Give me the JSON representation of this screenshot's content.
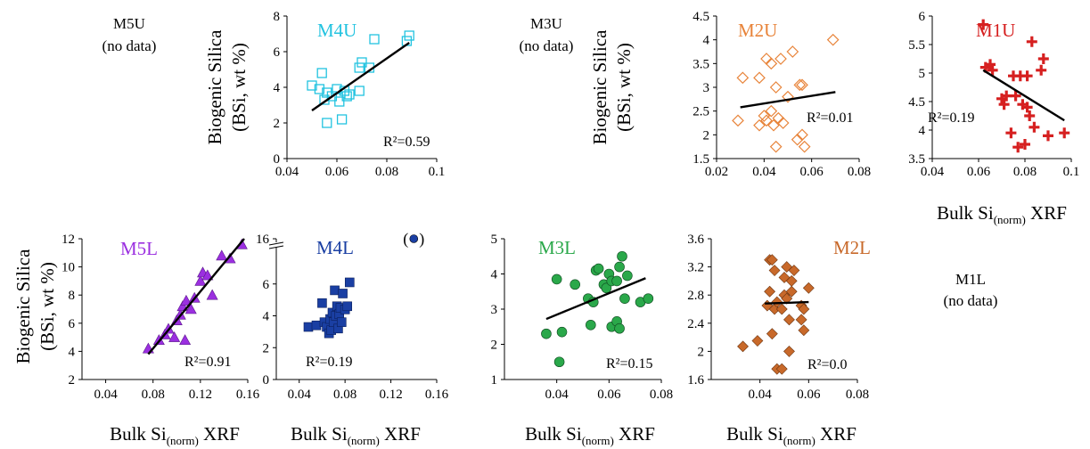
{
  "figure": {
    "panels_top": [
      "M5U",
      "M4U",
      "M3U",
      "M2U",
      "M1U"
    ],
    "panels_bottom": [
      "M5L",
      "M4L",
      "M3L",
      "M2L",
      "M1L"
    ]
  },
  "labels": {
    "ylabel_line1": "Biogenic Silica",
    "ylabel_line2": "(BSi, wt %)",
    "xlabel_main": "Bulk Si",
    "xlabel_sub": "(norm)",
    "xlabel_end": " XRF",
    "no_data": "(no data)"
  },
  "nodata_panels": [
    {
      "title": "M5U",
      "note": "(no data)"
    },
    {
      "title": "M3U",
      "note": "(no data)"
    },
    {
      "title": "M1L",
      "note": "(no data)"
    }
  ],
  "chart_data": [
    {
      "id": "M4U",
      "type": "scatter",
      "title": "M4U",
      "color": "#22c3e0",
      "marker": "square-open",
      "xlim": [
        0.04,
        0.1
      ],
      "ylim": [
        0,
        8
      ],
      "xticks": [
        "0.04",
        "0.06",
        "0.08",
        "0.1"
      ],
      "xtickvals": [
        0.04,
        0.06,
        0.08,
        0.1
      ],
      "yticks": [
        "0",
        "2",
        "4",
        "6",
        "8"
      ],
      "ytickvals": [
        0,
        2,
        4,
        6,
        8
      ],
      "fit": [
        [
          0.05,
          2.7
        ],
        [
          0.089,
          6.5
        ]
      ],
      "r2": "R²=0.59",
      "points": [
        [
          0.05,
          4.1
        ],
        [
          0.053,
          3.9
        ],
        [
          0.054,
          4.8
        ],
        [
          0.055,
          3.3
        ],
        [
          0.056,
          2.0
        ],
        [
          0.056,
          3.7
        ],
        [
          0.058,
          3.5
        ],
        [
          0.06,
          3.9
        ],
        [
          0.061,
          3.2
        ],
        [
          0.062,
          2.2
        ],
        [
          0.063,
          3.8
        ],
        [
          0.064,
          3.5
        ],
        [
          0.065,
          3.6
        ],
        [
          0.069,
          3.8
        ],
        [
          0.069,
          5.1
        ],
        [
          0.07,
          5.4
        ],
        [
          0.073,
          5.1
        ],
        [
          0.075,
          6.7
        ],
        [
          0.088,
          6.6
        ],
        [
          0.089,
          6.9
        ]
      ]
    },
    {
      "id": "M2U",
      "type": "scatter",
      "title": "M2U",
      "color": "#e8843a",
      "marker": "diamond-open",
      "xlim": [
        0.02,
        0.08
      ],
      "ylim": [
        1.5,
        4.5
      ],
      "xticks": [
        "0.02",
        "0.04",
        "0.06",
        "0.08"
      ],
      "xtickvals": [
        0.02,
        0.04,
        0.06,
        0.08
      ],
      "yticks": [
        "1.5",
        "2",
        "2.5",
        "3",
        "3.5",
        "4",
        "4.5"
      ],
      "ytickvals": [
        1.5,
        2,
        2.5,
        3,
        3.5,
        4,
        4.5
      ],
      "fit": [
        [
          0.03,
          2.58
        ],
        [
          0.07,
          2.9
        ]
      ],
      "r2": "R²=0.01",
      "points": [
        [
          0.029,
          2.3
        ],
        [
          0.031,
          3.2
        ],
        [
          0.038,
          3.2
        ],
        [
          0.038,
          2.2
        ],
        [
          0.04,
          2.4
        ],
        [
          0.041,
          3.6
        ],
        [
          0.041,
          2.3
        ],
        [
          0.043,
          3.5
        ],
        [
          0.043,
          2.5
        ],
        [
          0.044,
          2.2
        ],
        [
          0.045,
          3.0
        ],
        [
          0.045,
          1.75
        ],
        [
          0.046,
          2.35
        ],
        [
          0.047,
          3.6
        ],
        [
          0.048,
          2.25
        ],
        [
          0.05,
          2.8
        ],
        [
          0.052,
          3.75
        ],
        [
          0.054,
          1.9
        ],
        [
          0.055,
          3.05
        ],
        [
          0.056,
          3.05
        ],
        [
          0.056,
          2.0
        ],
        [
          0.057,
          1.75
        ],
        [
          0.069,
          4.0
        ]
      ]
    },
    {
      "id": "M1U",
      "type": "scatter",
      "title": "M1U",
      "color": "#d62020",
      "marker": "plus",
      "xlim": [
        0.04,
        0.1
      ],
      "ylim": [
        3.5,
        6
      ],
      "xticks": [
        "0.04",
        "0.06",
        "0.08",
        "0.1"
      ],
      "xtickvals": [
        0.04,
        0.06,
        0.08,
        0.1
      ],
      "yticks": [
        "3.5",
        "4",
        "4.5",
        "5",
        "5.5",
        "6"
      ],
      "ytickvals": [
        3.5,
        4,
        4.5,
        5,
        5.5,
        6
      ],
      "fit": [
        [
          0.062,
          5.05
        ],
        [
          0.097,
          4.17
        ]
      ],
      "r2": "R²=0.19",
      "points": [
        [
          0.062,
          5.85
        ],
        [
          0.063,
          5.1
        ],
        [
          0.065,
          5.15
        ],
        [
          0.066,
          5.05
        ],
        [
          0.07,
          4.55
        ],
        [
          0.071,
          4.45
        ],
        [
          0.072,
          4.6
        ],
        [
          0.074,
          3.95
        ],
        [
          0.075,
          4.95
        ],
        [
          0.076,
          4.6
        ],
        [
          0.077,
          3.7
        ],
        [
          0.078,
          4.95
        ],
        [
          0.079,
          4.45
        ],
        [
          0.08,
          3.75
        ],
        [
          0.081,
          4.95
        ],
        [
          0.081,
          4.4
        ],
        [
          0.082,
          4.25
        ],
        [
          0.083,
          5.55
        ],
        [
          0.084,
          4.05
        ],
        [
          0.087,
          5.05
        ],
        [
          0.088,
          5.25
        ],
        [
          0.09,
          3.9
        ],
        [
          0.097,
          3.95
        ]
      ]
    },
    {
      "id": "M5L",
      "type": "scatter",
      "title": "M5L",
      "color": "#9b2fe0",
      "marker": "triangle",
      "xlim": [
        0.02,
        0.16
      ],
      "ylim": [
        2,
        12
      ],
      "xticks": [
        "0.04",
        "0.08",
        "0.12",
        "0.16"
      ],
      "xtickvals": [
        0.04,
        0.08,
        0.12,
        0.16
      ],
      "yticks": [
        "2",
        "4",
        "6",
        "8",
        "10",
        "12"
      ],
      "ytickvals": [
        2,
        4,
        6,
        8,
        10,
        12
      ],
      "fit": [
        [
          0.076,
          3.8
        ],
        [
          0.157,
          12
        ]
      ],
      "r2": "R²=0.91",
      "points": [
        [
          0.076,
          4.2
        ],
        [
          0.085,
          4.8
        ],
        [
          0.09,
          5.2
        ],
        [
          0.093,
          5.6
        ],
        [
          0.098,
          5.0
        ],
        [
          0.1,
          6.2
        ],
        [
          0.103,
          6.6
        ],
        [
          0.105,
          7.2
        ],
        [
          0.107,
          4.8
        ],
        [
          0.108,
          7.6
        ],
        [
          0.112,
          7.0
        ],
        [
          0.115,
          7.8
        ],
        [
          0.12,
          9.0
        ],
        [
          0.122,
          9.6
        ],
        [
          0.126,
          9.4
        ],
        [
          0.13,
          8.0
        ],
        [
          0.138,
          10.8
        ],
        [
          0.145,
          10.6
        ],
        [
          0.155,
          11.6
        ]
      ]
    },
    {
      "id": "M4L",
      "type": "scatter",
      "title": "M4L",
      "color": "#1a3fa3",
      "marker": "square",
      "xlim": [
        0.02,
        0.16
      ],
      "ylim": [
        0,
        8
      ],
      "xticks": [
        "0.04",
        "0.08",
        "0.12",
        "0.16"
      ],
      "xtickvals": [
        0.04,
        0.08,
        0.12,
        0.16
      ],
      "yticks": [
        "0",
        "2",
        "4",
        "6"
      ],
      "ytickvals": [
        0,
        2,
        4,
        6
      ],
      "ybreak_label": "16",
      "outlier": {
        "x": 0.14,
        "label_open": "(",
        "label_close": ")"
      },
      "r2": "R²=0.19",
      "points": [
        [
          0.048,
          3.3
        ],
        [
          0.055,
          3.4
        ],
        [
          0.06,
          4.8
        ],
        [
          0.062,
          3.6
        ],
        [
          0.064,
          3.3
        ],
        [
          0.066,
          2.9
        ],
        [
          0.067,
          3.8
        ],
        [
          0.068,
          3.1
        ],
        [
          0.069,
          4.2
        ],
        [
          0.07,
          3.6
        ],
        [
          0.071,
          5.6
        ],
        [
          0.072,
          4.0
        ],
        [
          0.073,
          4.6
        ],
        [
          0.074,
          3.2
        ],
        [
          0.075,
          4.1
        ],
        [
          0.076,
          4.5
        ],
        [
          0.077,
          3.6
        ],
        [
          0.078,
          5.4
        ],
        [
          0.08,
          4.4
        ],
        [
          0.082,
          4.6
        ],
        [
          0.084,
          6.1
        ]
      ]
    },
    {
      "id": "M3L",
      "type": "scatter",
      "title": "M3L",
      "color": "#2aa84a",
      "marker": "circle",
      "xlim": [
        0.02,
        0.08
      ],
      "ylim": [
        1,
        5
      ],
      "xticks": [
        "0.04",
        "0.06",
        "0.08"
      ],
      "xtickvals": [
        0.04,
        0.06,
        0.08
      ],
      "yticks": [
        "1",
        "2",
        "3",
        "4",
        "5"
      ],
      "ytickvals": [
        1,
        2,
        3,
        4,
        5
      ],
      "fit": [
        [
          0.036,
          2.72
        ],
        [
          0.074,
          3.88
        ]
      ],
      "r2": "R²=0.15",
      "points": [
        [
          0.036,
          2.3
        ],
        [
          0.04,
          3.85
        ],
        [
          0.041,
          1.5
        ],
        [
          0.042,
          2.35
        ],
        [
          0.047,
          3.7
        ],
        [
          0.052,
          3.3
        ],
        [
          0.053,
          2.55
        ],
        [
          0.054,
          3.2
        ],
        [
          0.055,
          4.1
        ],
        [
          0.056,
          4.15
        ],
        [
          0.058,
          3.7
        ],
        [
          0.059,
          3.6
        ],
        [
          0.06,
          4.0
        ],
        [
          0.061,
          3.8
        ],
        [
          0.061,
          2.5
        ],
        [
          0.063,
          3.8
        ],
        [
          0.063,
          2.65
        ],
        [
          0.064,
          4.2
        ],
        [
          0.064,
          2.45
        ],
        [
          0.065,
          4.5
        ],
        [
          0.066,
          3.3
        ],
        [
          0.067,
          3.95
        ],
        [
          0.072,
          3.2
        ],
        [
          0.075,
          3.3
        ]
      ]
    },
    {
      "id": "M2L",
      "type": "scatter",
      "title": "M2L",
      "color": "#c8692a",
      "marker": "diamond",
      "xlim": [
        0.02,
        0.08
      ],
      "ylim": [
        1.6,
        3.6
      ],
      "xticks": [
        "0.04",
        "0.06",
        "0.08"
      ],
      "xtickvals": [
        0.04,
        0.06,
        0.08
      ],
      "yticks": [
        "1.6",
        "2",
        "2.4",
        "2.8",
        "3.2",
        "3.6"
      ],
      "ytickvals": [
        1.6,
        2.0,
        2.4,
        2.8,
        3.2,
        3.6
      ],
      "fit": [
        [
          0.042,
          2.68
        ],
        [
          0.06,
          2.7
        ]
      ],
      "r2": "R²=0.0",
      "points": [
        [
          0.033,
          2.07
        ],
        [
          0.039,
          2.15
        ],
        [
          0.043,
          2.65
        ],
        [
          0.044,
          2.85
        ],
        [
          0.044,
          3.3
        ],
        [
          0.045,
          2.25
        ],
        [
          0.045,
          3.3
        ],
        [
          0.046,
          2.6
        ],
        [
          0.046,
          3.15
        ],
        [
          0.047,
          2.7
        ],
        [
          0.047,
          1.75
        ],
        [
          0.049,
          2.6
        ],
        [
          0.049,
          1.75
        ],
        [
          0.05,
          3.05
        ],
        [
          0.05,
          2.8
        ],
        [
          0.051,
          3.2
        ],
        [
          0.051,
          2.75
        ],
        [
          0.052,
          2.45
        ],
        [
          0.052,
          2.0
        ],
        [
          0.053,
          3.0
        ],
        [
          0.053,
          2.85
        ],
        [
          0.054,
          3.15
        ],
        [
          0.057,
          2.65
        ],
        [
          0.057,
          2.45
        ],
        [
          0.058,
          2.3
        ],
        [
          0.058,
          2.6
        ],
        [
          0.06,
          2.9
        ]
      ]
    }
  ]
}
